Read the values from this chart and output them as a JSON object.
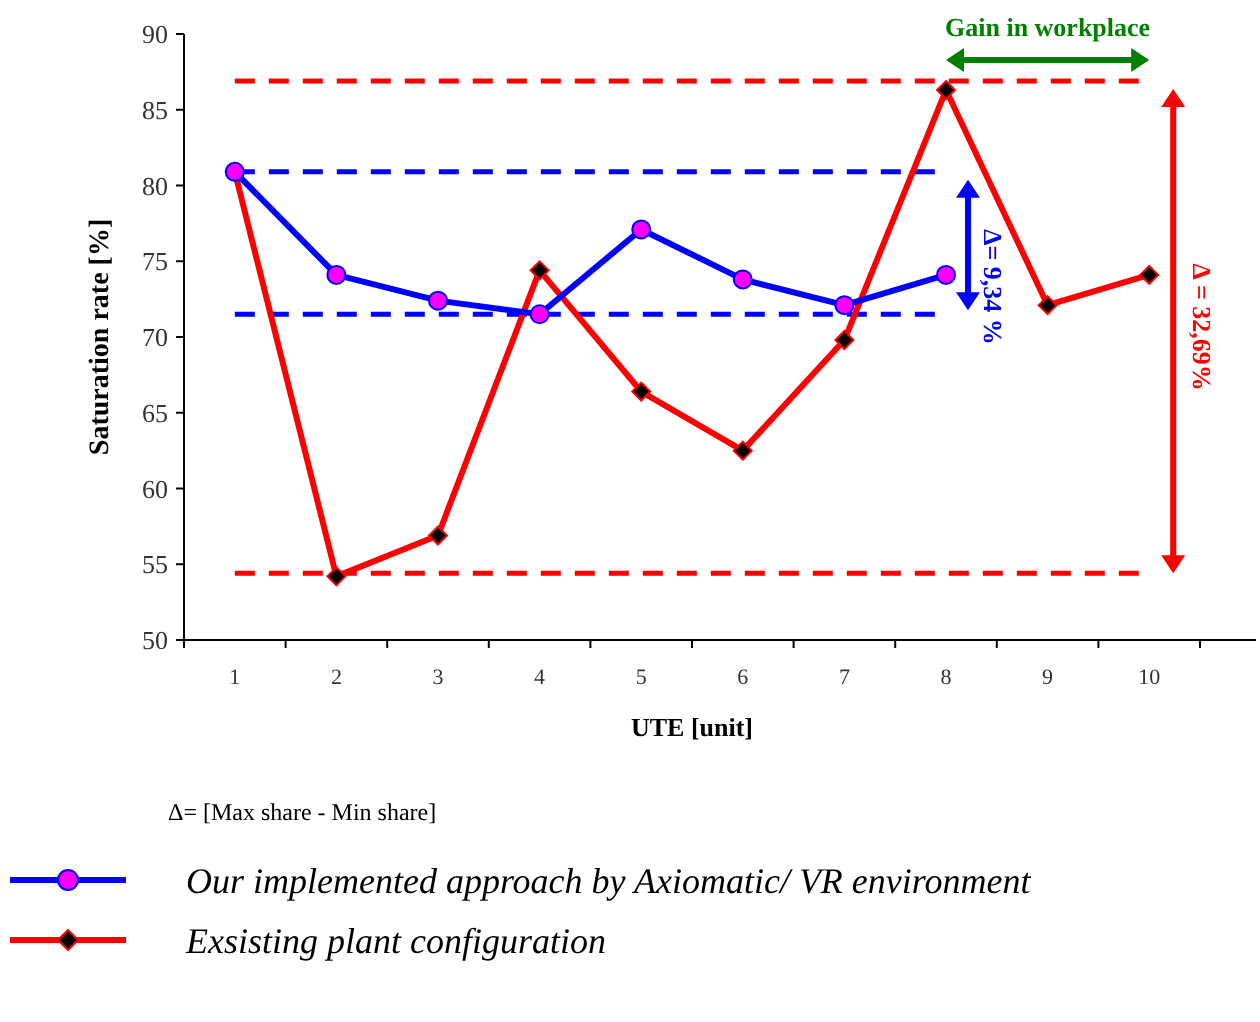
{
  "chart_data": {
    "type": "line",
    "xlabel": "UTE [unit]",
    "ylabel": "Saturation rate  [%]",
    "categories": [
      "1",
      "2",
      "3",
      "4",
      "5",
      "6",
      "7",
      "8",
      "9",
      "10"
    ],
    "ylim": [
      50,
      90
    ],
    "yticks": [
      50,
      55,
      60,
      65,
      70,
      75,
      80,
      85,
      90
    ],
    "series": [
      {
        "name": "Our implemented approach by Axiomatic/ VR environment",
        "color": "#0000ff",
        "marker": "circle",
        "values": [
          80.9,
          74.1,
          72.4,
          71.5,
          77.1,
          73.8,
          72.1,
          74.1,
          null,
          null
        ]
      },
      {
        "name": "Exsisting plant configuration",
        "color": "#ff0000",
        "marker": "diamond",
        "values": [
          80.9,
          54.2,
          56.9,
          74.4,
          66.4,
          62.5,
          69.8,
          86.3,
          72.1,
          74.1
        ]
      }
    ],
    "ref_lines": [
      {
        "axis": "y",
        "value": 86.9,
        "color": "#ff0000",
        "line_style": "dashed"
      },
      {
        "axis": "y",
        "value": 54.4,
        "color": "#ff0000",
        "line_style": "dashed"
      },
      {
        "axis": "y",
        "value": 80.9,
        "color": "#0000ff",
        "line_style": "dashed"
      },
      {
        "axis": "y",
        "value": 71.5,
        "color": "#0000ff",
        "line_style": "dashed"
      }
    ],
    "annotations": [
      "Δ= 9,34 %",
      "Δ = 32,69%",
      "Gain in workplace",
      "Δ= [Max share - Min share]"
    ],
    "legend": "bottom left"
  }
}
